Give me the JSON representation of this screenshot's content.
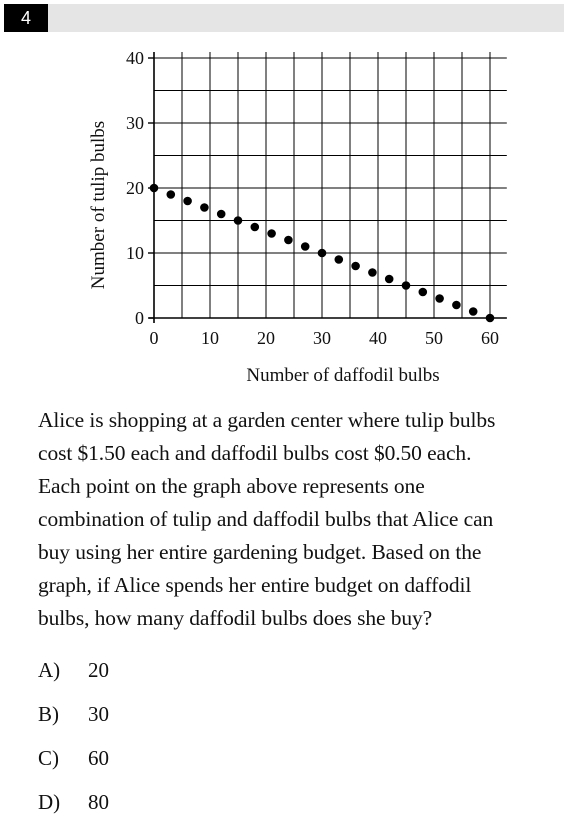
{
  "question_number": "4",
  "chart_data": {
    "type": "scatter",
    "xlabel": "Number of daffodil bulbs",
    "ylabel": "Number of tulip bulbs",
    "xlim": [
      0,
      63
    ],
    "ylim": [
      0,
      40
    ],
    "xticks": [
      0,
      10,
      20,
      30,
      40,
      50,
      60
    ],
    "yticks": [
      0,
      10,
      20,
      30,
      40
    ],
    "grid": true,
    "points": [
      {
        "x": 0,
        "y": 20
      },
      {
        "x": 3,
        "y": 19
      },
      {
        "x": 6,
        "y": 18
      },
      {
        "x": 9,
        "y": 17
      },
      {
        "x": 12,
        "y": 16
      },
      {
        "x": 15,
        "y": 15
      },
      {
        "x": 18,
        "y": 14
      },
      {
        "x": 21,
        "y": 13
      },
      {
        "x": 24,
        "y": 12
      },
      {
        "x": 27,
        "y": 11
      },
      {
        "x": 30,
        "y": 10
      },
      {
        "x": 33,
        "y": 9
      },
      {
        "x": 36,
        "y": 8
      },
      {
        "x": 39,
        "y": 7
      },
      {
        "x": 42,
        "y": 6
      },
      {
        "x": 45,
        "y": 5
      },
      {
        "x": 48,
        "y": 4
      },
      {
        "x": 51,
        "y": 3
      },
      {
        "x": 54,
        "y": 2
      },
      {
        "x": 57,
        "y": 1
      },
      {
        "x": 60,
        "y": 0
      }
    ]
  },
  "prompt_lines": [
    "Alice is shopping at a garden center where tulip bulbs",
    "cost $1.50 each and daffodil bulbs cost $0.50 each.",
    "Each point on the graph above represents one",
    "combination of tulip and daffodil bulbs that Alice can",
    "buy using her entire gardening budget. Based on the",
    "graph, if Alice spends her entire budget on daffodil",
    "bulbs, how many daffodil bulbs does she buy?"
  ],
  "choices": [
    {
      "letter": "A)",
      "value": "20"
    },
    {
      "letter": "B)",
      "value": "30"
    },
    {
      "letter": "C)",
      "value": "60"
    },
    {
      "letter": "D)",
      "value": "80"
    }
  ]
}
